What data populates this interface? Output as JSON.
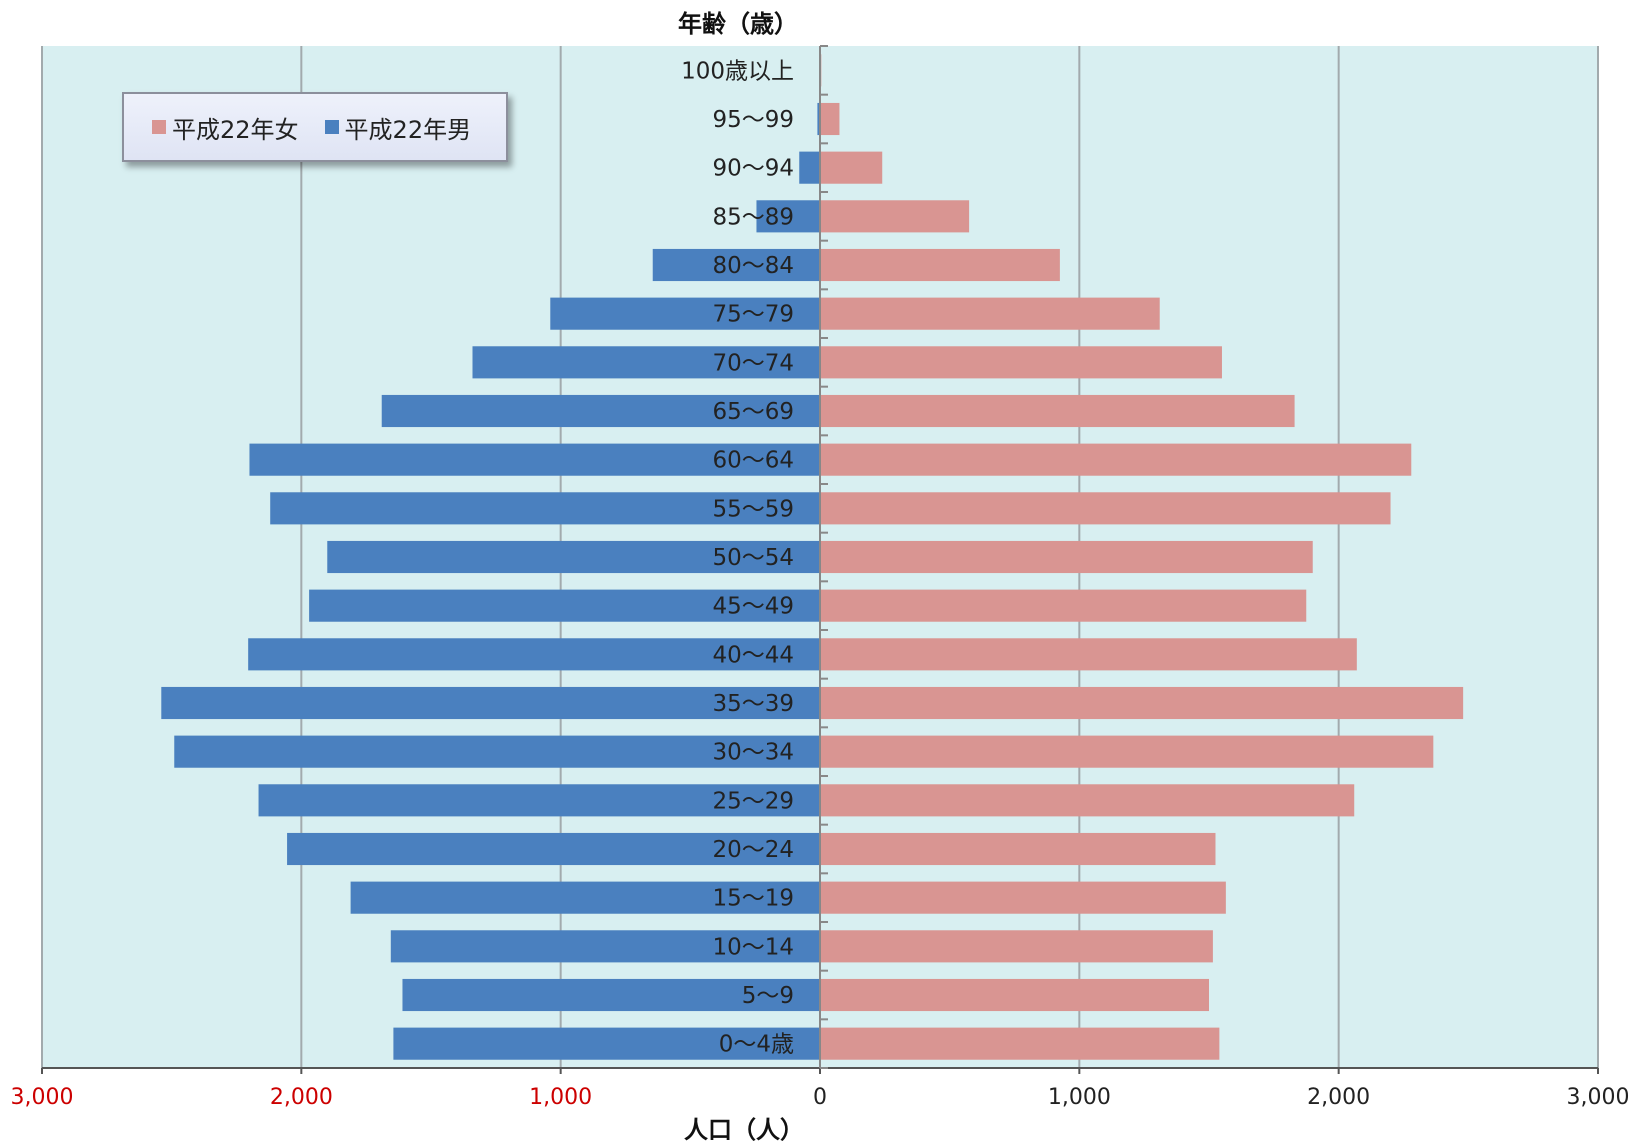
{
  "chart_data": {
    "type": "bar",
    "orientation": "horizontal-diverging",
    "title": "年齢（歳）",
    "xlabel": "人口（人）",
    "categories": [
      "100歳以上",
      "95～99",
      "90～94",
      "85～89",
      "80～84",
      "75～79",
      "70～74",
      "65～69",
      "60～64",
      "55～59",
      "50～54",
      "45～49",
      "40～44",
      "35～39",
      "30～34",
      "25～29",
      "20～24",
      "15～19",
      "10～14",
      "5～9",
      "0～4歳"
    ],
    "series": [
      {
        "name": "平成22年女",
        "color": "#d99592",
        "side": "right",
        "values": [
          5,
          75,
          240,
          575,
          925,
          1310,
          1550,
          1830,
          2280,
          2200,
          1900,
          1875,
          2070,
          2480,
          2365,
          2060,
          1525,
          1565,
          1515,
          1500,
          1540
        ]
      },
      {
        "name": "平成22年男",
        "color": "#4a80bf",
        "side": "left",
        "values": [
          3,
          10,
          80,
          245,
          645,
          1040,
          1340,
          1690,
          2200,
          2120,
          1900,
          1970,
          2205,
          2540,
          2490,
          2165,
          2055,
          1810,
          1655,
          1610,
          1645
        ]
      }
    ],
    "xticks": [
      {
        "value": -3000,
        "label": "3,000",
        "color": "#cc0000"
      },
      {
        "value": -2000,
        "label": "2,000",
        "color": "#cc0000"
      },
      {
        "value": -1000,
        "label": "1,000",
        "color": "#cc0000"
      },
      {
        "value": 0,
        "label": "0",
        "color": "#222222"
      },
      {
        "value": 1000,
        "label": "1,000",
        "color": "#222222"
      },
      {
        "value": 2000,
        "label": "2,000",
        "color": "#222222"
      },
      {
        "value": 3000,
        "label": "3,000",
        "color": "#222222"
      }
    ],
    "xlim": [
      -3000,
      3000
    ],
    "grid": true,
    "legend_position": "top-left",
    "plot_background": "#d8eff1"
  }
}
